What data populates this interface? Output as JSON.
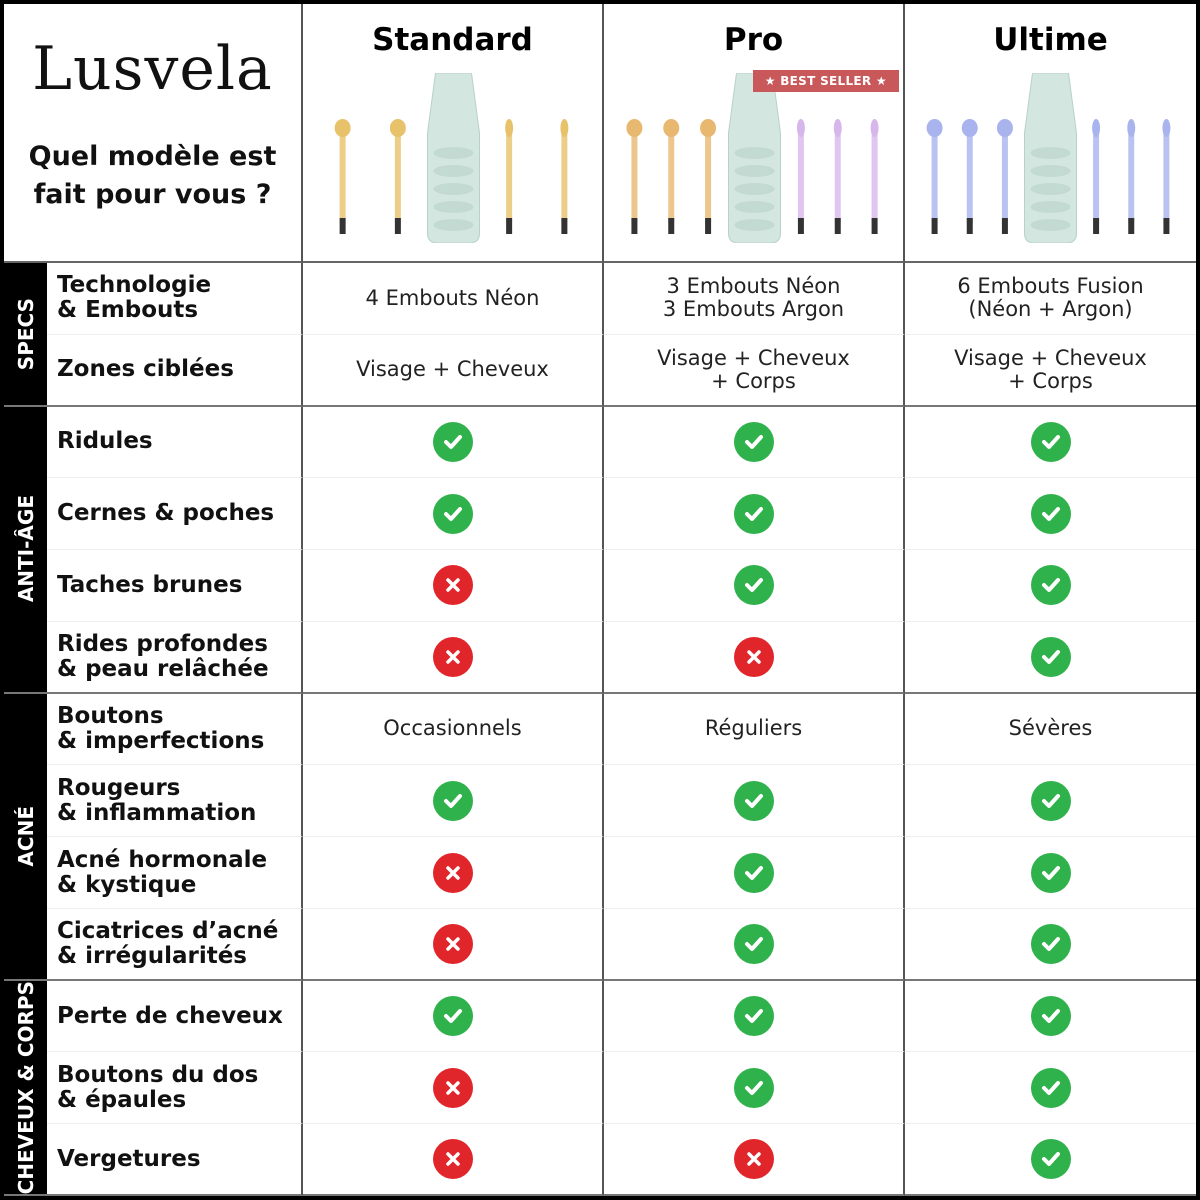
{
  "brand": "Lusvela",
  "question": "Quel modèle est\nfait pour vous ?",
  "colors": {
    "check": "#2fb14b",
    "cross": "#e0252b",
    "badge": "#c9585a"
  },
  "products": [
    {
      "name": "Standard",
      "tip_color": "#e8c26a",
      "tips": 4
    },
    {
      "name": "Pro",
      "tip_color": "#e8b870",
      "tips": 6,
      "badge": "★ BEST SELLER ★"
    },
    {
      "name": "Ultime",
      "tip_color": "#a9b3ee",
      "tips": 6
    }
  ],
  "groups": [
    {
      "label": "SPECS",
      "rows": [
        {
          "label": "Technologie\n& Embouts",
          "values": [
            "4 Embouts Néon",
            "3 Embouts Néon\n3 Embouts Argon",
            "6 Embouts Fusion\n(Néon + Argon)"
          ]
        },
        {
          "label": "Zones ciblées",
          "values": [
            "Visage + Cheveux",
            "Visage + Cheveux\n+ Corps",
            "Visage + Cheveux\n+ Corps"
          ]
        }
      ]
    },
    {
      "label": "ANTI-ÂGE",
      "rows": [
        {
          "label": "Ridules",
          "values": [
            "check",
            "check",
            "check"
          ]
        },
        {
          "label": "Cernes & poches",
          "values": [
            "check",
            "check",
            "check"
          ]
        },
        {
          "label": "Taches brunes",
          "values": [
            "cross",
            "check",
            "check"
          ]
        },
        {
          "label": "Rides profondes\n& peau relâchée",
          "values": [
            "cross",
            "cross",
            "check"
          ]
        }
      ]
    },
    {
      "label": "ACNÉ",
      "rows": [
        {
          "label": "Boutons\n& imperfections",
          "values": [
            "Occasionnels",
            "Réguliers",
            "Sévères"
          ]
        },
        {
          "label": "Rougeurs\n& inflammation",
          "values": [
            "check",
            "check",
            "check"
          ]
        },
        {
          "label": "Acné hormonale\n& kystique",
          "values": [
            "cross",
            "check",
            "check"
          ]
        },
        {
          "label": "Cicatrices d’acné\n& irrégularités",
          "values": [
            "cross",
            "check",
            "check"
          ]
        }
      ]
    },
    {
      "label": "CHEVEUX & CORPS",
      "rows": [
        {
          "label": "Perte de cheveux",
          "values": [
            "check",
            "check",
            "check"
          ]
        },
        {
          "label": "Boutons du dos\n& épaules",
          "values": [
            "cross",
            "check",
            "check"
          ]
        },
        {
          "label": "Vergetures",
          "values": [
            "cross",
            "cross",
            "check"
          ]
        }
      ]
    }
  ]
}
